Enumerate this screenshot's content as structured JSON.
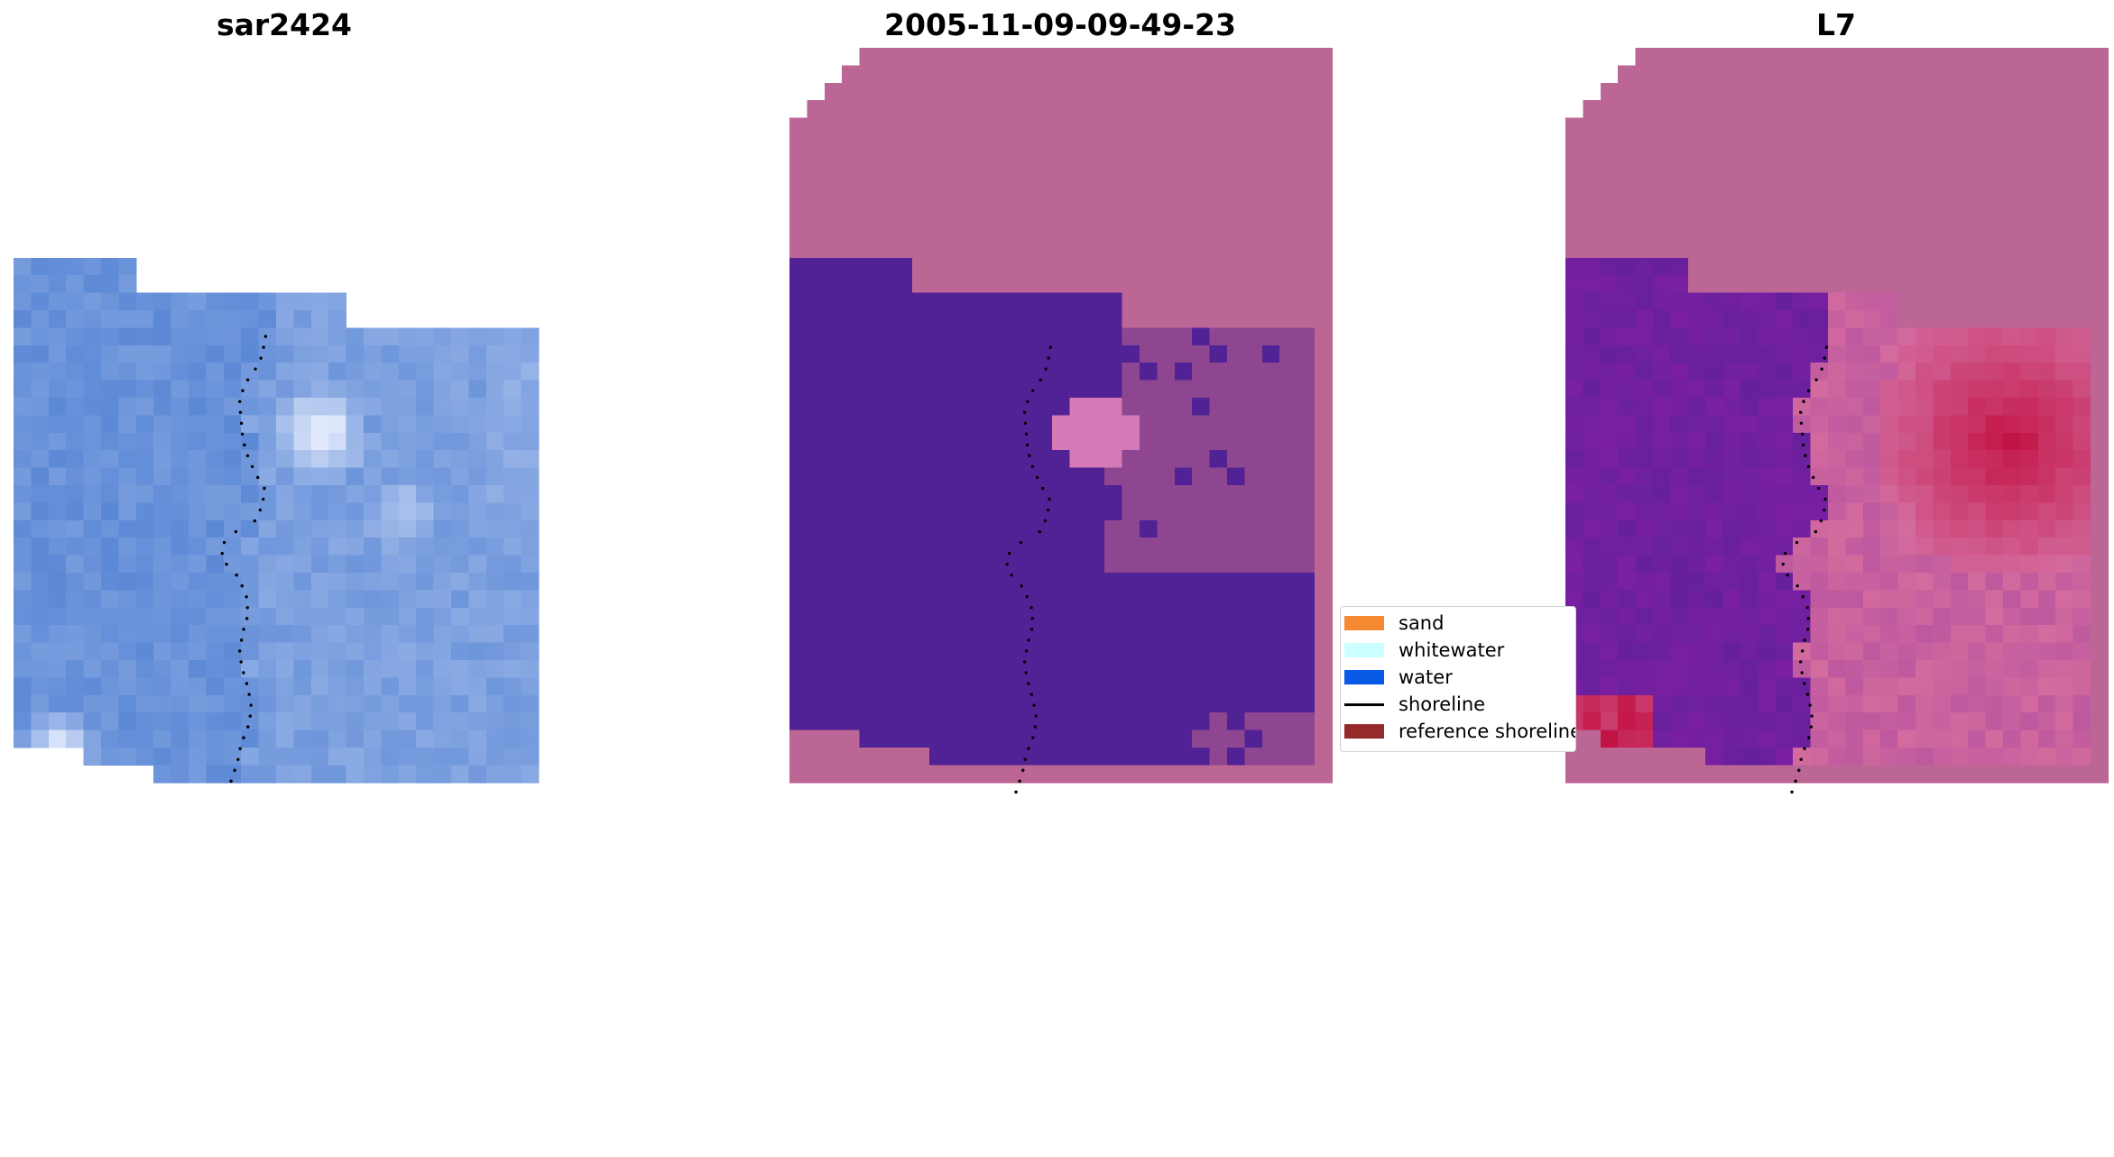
{
  "panels": [
    {
      "title": "sar2424"
    },
    {
      "title": "2005-11-09-09-49-23"
    },
    {
      "title": "L7"
    }
  ],
  "legend": {
    "items": [
      {
        "label": "sand",
        "color": "#f58a33",
        "kind": "patch"
      },
      {
        "label": "whitewater",
        "color": "#ccffff",
        "kind": "patch"
      },
      {
        "label": "water",
        "color": "#0a5ae8",
        "kind": "patch"
      },
      {
        "label": "shoreline",
        "color": "#000000",
        "kind": "line"
      },
      {
        "label": "reference shoreline",
        "color": "#942a2a",
        "kind": "patch"
      }
    ]
  },
  "colors": {
    "rgb_water": "#4f7fd2",
    "rgb_bright": "#eaf0ff",
    "class_nodata": "#bc6696",
    "class_water": "#512295",
    "class_other": "#8e4690",
    "class_bright": "#d57ab6",
    "mndwi_red": "#c21142",
    "mndwi_purple": "#7a1fa2",
    "mndwi_pink": "#d46b9e"
  }
}
